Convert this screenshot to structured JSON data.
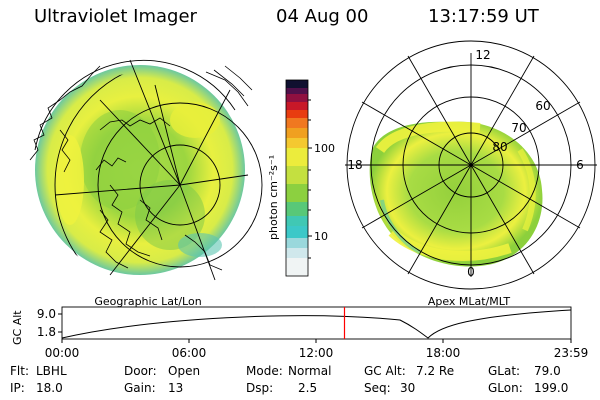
{
  "header": {
    "instrument": "Ultraviolet Imager",
    "date": "04 Aug 00",
    "time": "13:17:59  UT"
  },
  "left_panel": {
    "label": "Geographic Lat/Lon"
  },
  "right_panel": {
    "label": "Apex MLat/MLT",
    "mlt_labels": [
      "12",
      "18",
      "6",
      "0"
    ],
    "mlat_labels": [
      "60",
      "70",
      "80"
    ]
  },
  "colorbar": {
    "unit_label": "photon cm⁻²s⁻¹",
    "tick_labels": [
      "100",
      "10"
    ]
  },
  "orbit_plot": {
    "axis_label": "GC Alt",
    "y_ticks": [
      "9.0",
      "1.8"
    ],
    "x_ticks": [
      "00:00",
      "06:00",
      "12:00",
      "18:00",
      "23:59"
    ],
    "current_time_fraction": 0.555
  },
  "info": {
    "filter_label": "Flt:",
    "filter_value": "LBHL",
    "ip_label": "IP:",
    "ip_value": "18.0",
    "door_label": "Door:",
    "door_value": "Open",
    "gain_label": "Gain:",
    "gain_value": "13",
    "mode_label": "Mode:",
    "mode_value": "Normal",
    "dsp_label": "Dsp:",
    "dsp_value": "2.5",
    "gcalt_label": "GC Alt:",
    "gcalt_value": "7.2 Re",
    "seq_label": "Seq:",
    "seq_value": "30",
    "glat_label": "GLat:",
    "glat_value": "79.0",
    "glon_label": "GLon:",
    "glon_value": "199.0"
  },
  "colors": {
    "aurora_yellow": "#e6f03c",
    "aurora_green": "#8cd23c",
    "aurora_cyan": "#50c8b4",
    "marker_red": "#ff0000"
  }
}
